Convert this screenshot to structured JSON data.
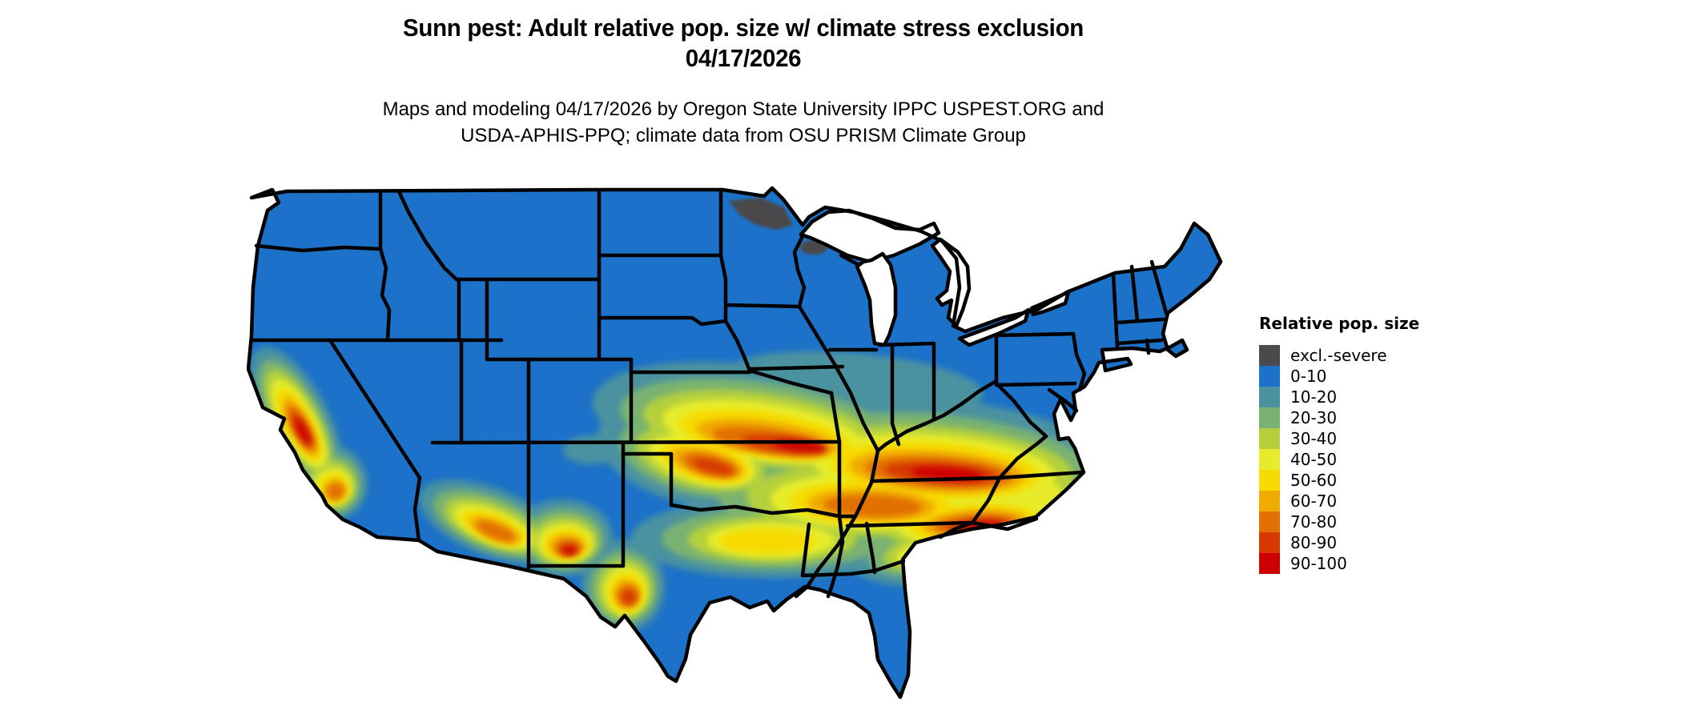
{
  "header": {
    "title_line1": "Sunn pest: Adult relative pop. size w/ climate stress exclusion",
    "title_line2": "04/17/2026",
    "subtitle_line1": "Maps and modeling 04/17/2026 by Oregon State University IPPC USPEST.ORG and",
    "subtitle_line2": "USDA-APHIS-PPQ; climate data from OSU PRISM Climate Group"
  },
  "legend": {
    "title": "Relative pop. size",
    "items": [
      {
        "label": "excl.-severe",
        "color": "#4a4a4c"
      },
      {
        "label": "0-10",
        "color": "#1c72c8"
      },
      {
        "label": "10-20",
        "color": "#4b92a0"
      },
      {
        "label": "20-30",
        "color": "#7ab271"
      },
      {
        "label": "30-40",
        "color": "#b5d03c"
      },
      {
        "label": "40-50",
        "color": "#e6ec2b"
      },
      {
        "label": "50-60",
        "color": "#f7da00"
      },
      {
        "label": "60-70",
        "color": "#f0ab00"
      },
      {
        "label": "70-80",
        "color": "#e27000"
      },
      {
        "label": "80-90",
        "color": "#d63a00"
      },
      {
        "label": "90-100",
        "color": "#cc0000"
      }
    ]
  },
  "map": {
    "region": "Conterminous United States (48 states)",
    "background_color": "#ffffff",
    "state_border_color": "#000000",
    "base_category": "0-10",
    "water_bodies_shown": [
      "Lake Superior",
      "Lake Michigan",
      "Lake Huron",
      "Lake Erie",
      "Lake Ontario"
    ]
  },
  "chart_data": {
    "type": "heatmap",
    "title": "Sunn pest: Adult relative pop. size w/ climate stress exclusion 04/17/2026",
    "legend_title": "Relative pop. size",
    "categories": [
      "excl.-severe",
      "0-10",
      "10-20",
      "20-30",
      "30-40",
      "40-50",
      "50-60",
      "60-70",
      "70-80",
      "80-90",
      "90-100"
    ],
    "category_colors": [
      "#4a4a4c",
      "#1c72c8",
      "#4b92a0",
      "#7ab271",
      "#b5d03c",
      "#e6ec2b",
      "#f7da00",
      "#f0ab00",
      "#e27000",
      "#d63a00",
      "#cc0000"
    ],
    "regions": [
      {
        "area": "Most of US (Pacific NW, Mountain West, upper Midwest, Northeast, Gulf Coast, Florida, south Texas)",
        "category": "0-10"
      },
      {
        "area": "Northern Minnesota and small patch of northern Wisconsin",
        "category": "excl.-severe"
      },
      {
        "area": "Central Plains band: Kansas, Oklahoma, Missouri into southern Illinois/Indiana",
        "category": "40-90 core with 90-100 streaks"
      },
      {
        "area": "Kentucky / Tennessee border band extending east",
        "category": "60-90"
      },
      {
        "area": "Southern Virginia, North Carolina piedmont into South Carolina and north Georgia",
        "category": "50-90"
      },
      {
        "area": "California Central Valley margins (Sierra foothills and coast ranges) and SoCal mountains",
        "category": "40-90 ring"
      },
      {
        "area": "Arizona Mogollon Rim and New Mexico / far west Texas mountains",
        "category": "40-90 streaks"
      },
      {
        "area": "Fringes of central band (Nebraska, Iowa, Ohio valley, northern Gulf states)",
        "category": "10-30"
      }
    ]
  }
}
